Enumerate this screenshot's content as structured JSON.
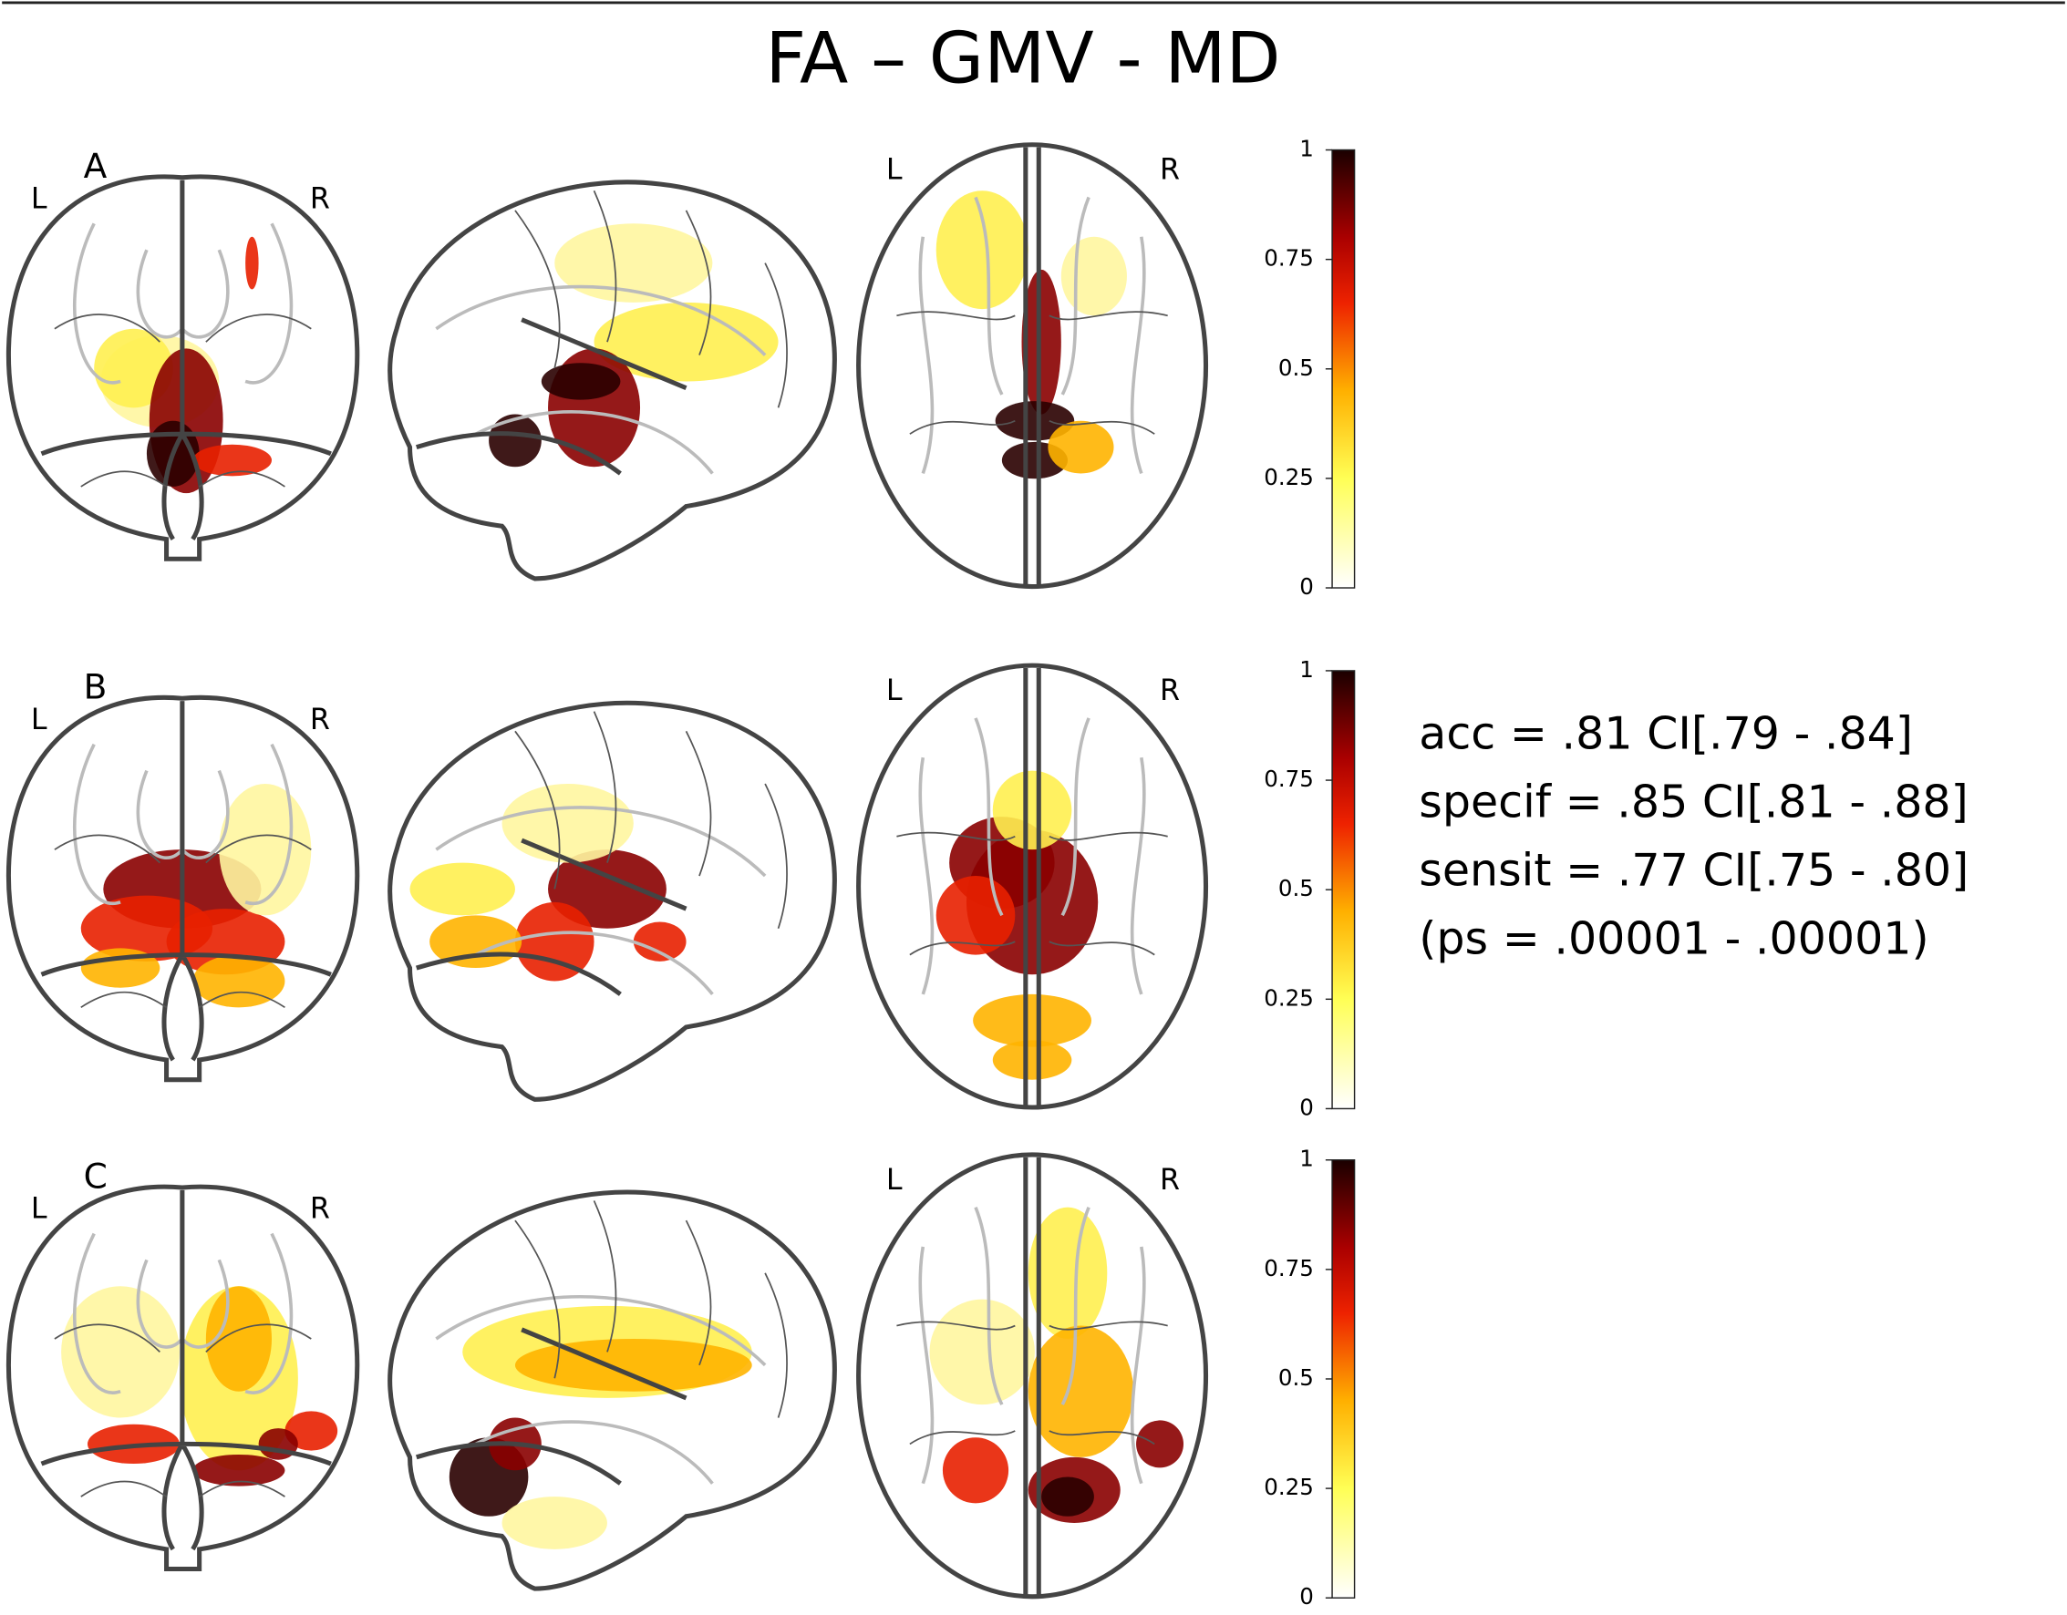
{
  "title": "FA – GMV - MD",
  "panels": [
    {
      "label": "A",
      "coronal": {
        "left": "L",
        "right": "R"
      },
      "axial": {
        "left": "L",
        "right": "R"
      },
      "colorbar": {
        "lim": [
          0,
          1
        ],
        "ticks": [
          0,
          0.25,
          0.5,
          0.75,
          1
        ]
      }
    },
    {
      "label": "B",
      "coronal": {
        "left": "L",
        "right": "R"
      },
      "axial": {
        "left": "L",
        "right": "R"
      },
      "colorbar": {
        "lim": [
          0,
          1
        ],
        "ticks": [
          0,
          0.25,
          0.5,
          0.75,
          1
        ]
      }
    },
    {
      "label": "C",
      "coronal": {
        "left": "L",
        "right": "R"
      },
      "axial": {
        "left": "L",
        "right": "R"
      },
      "colorbar": {
        "lim": [
          0,
          1
        ],
        "ticks": [
          0,
          0.25,
          0.5,
          0.75,
          1
        ]
      }
    }
  ],
  "stats": [
    "acc = .81 CI[.79 - .84]",
    "specif = .85 CI[.81 - .88]",
    "sensit = .77 CI[.75 - .80]",
    "(ps = .00001 - .00001)"
  ]
}
